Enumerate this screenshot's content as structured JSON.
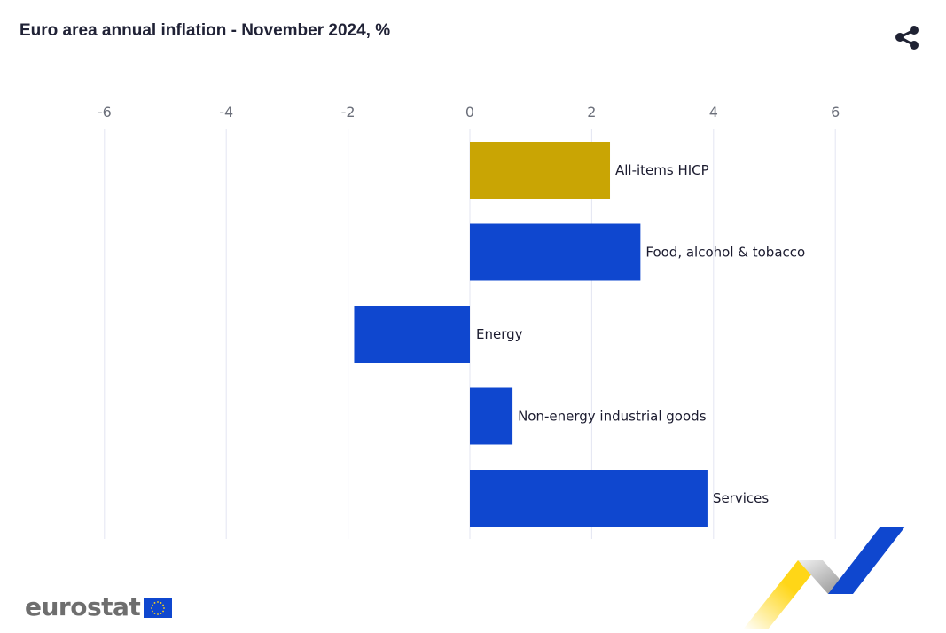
{
  "header": {
    "title": "Euro area annual inflation - November 2024, %",
    "share_icon": "share-icon"
  },
  "chart_data": {
    "type": "bar",
    "orientation": "horizontal",
    "title": "Euro area annual inflation - November 2024, %",
    "xlabel": "",
    "ylabel": "",
    "xlim": [
      -6,
      7
    ],
    "xticks": [
      -6,
      -4,
      -2,
      0,
      2,
      4,
      6
    ],
    "grid": true,
    "categories": [
      "All-items HICP",
      "Food, alcohol & tobacco",
      "Energy",
      "Non-energy industrial goods",
      "Services"
    ],
    "values": [
      2.3,
      2.8,
      -1.9,
      0.7,
      3.9
    ],
    "colors": [
      "#c9a504",
      "#0f47cf",
      "#0f47cf",
      "#0f47cf",
      "#0f47cf"
    ]
  },
  "branding": {
    "logo_text": "eurostat",
    "flag_icon": "eu-flag-icon",
    "ribbon_icon": "eurostat-ribbon-icon"
  }
}
